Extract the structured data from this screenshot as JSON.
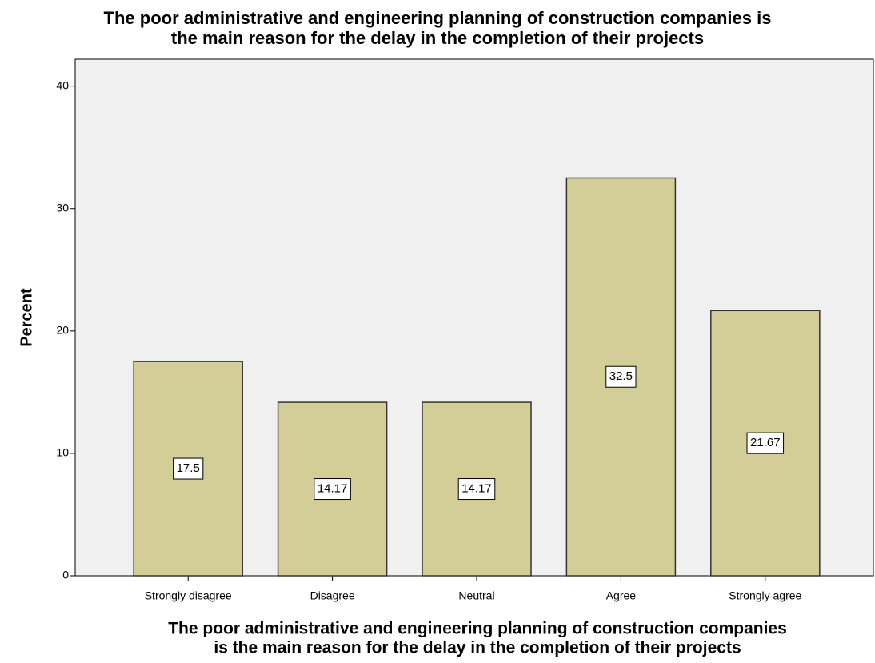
{
  "chart_data": {
    "type": "bar",
    "title": [
      "The poor administrative and engineering planning of construction companies is",
      "the main reason for the delay in the completion of their projects"
    ],
    "x_label": [
      "The poor administrative and engineering planning of construction companies",
      "is the main reason for the delay in the completion of their projects"
    ],
    "y_label": "Percent",
    "categories": [
      "Strongly disagree",
      "Disagree",
      "Neutral",
      "Agree",
      "Strongly agree"
    ],
    "values": [
      17.5,
      14.17,
      14.17,
      32.5,
      21.67
    ],
    "color": "#d3ce97",
    "ylim": [
      0,
      42.2
    ],
    "yticks": [
      0,
      10,
      20,
      30,
      40
    ],
    "grid": false
  }
}
